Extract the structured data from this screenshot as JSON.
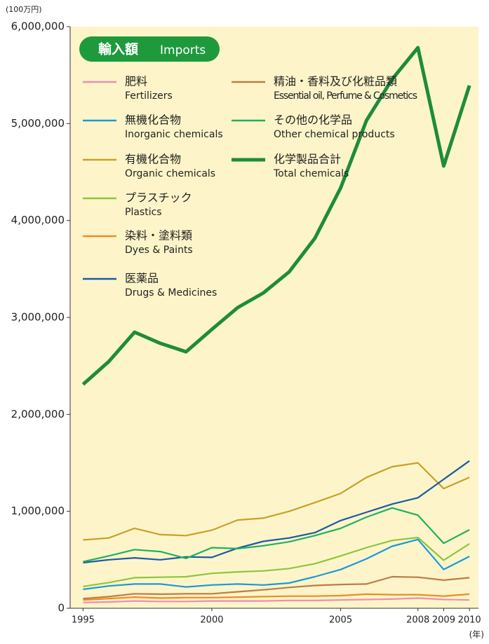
{
  "chart_data": {
    "type": "line",
    "unit_label": "(100万円)",
    "x_unit_label": "(年)",
    "legend_title": "輸入額",
    "legend_title_en": "Imports",
    "x": [
      1995,
      1996,
      1997,
      1998,
      1999,
      2000,
      2001,
      2002,
      2003,
      2004,
      2005,
      2006,
      2007,
      2008,
      2009,
      2010
    ],
    "xlim": [
      1994.5,
      2010.35
    ],
    "xticks": [
      1995,
      2000,
      2005,
      2008,
      2009,
      2010
    ],
    "ylim": [
      0,
      6000000
    ],
    "yticks": [
      0,
      {
        "value": 1000000,
        "label": "1,000,000"
      },
      {
        "value": 2000000,
        "label": "2,000,000"
      },
      {
        "value": 3000000,
        "label": "3,000,000"
      },
      {
        "value": 4000000,
        "label": "4,000,000"
      },
      {
        "value": 5000000,
        "label": "5,000,000"
      },
      {
        "value": 6000000,
        "label": "6,000,000"
      }
    ],
    "series": [
      {
        "name": "肥料",
        "name_en": "Fertilizers",
        "color": "#f08cb4",
        "values": [
          60000,
          65000,
          75000,
          70000,
          70000,
          75000,
          75000,
          75000,
          80000,
          80000,
          85000,
          90000,
          95000,
          105000,
          90000,
          85000
        ]
      },
      {
        "name": "無機化合物",
        "name_en": "Inorganic chemicals",
        "color": "#1a9ad6",
        "values": [
          195000,
          230000,
          250000,
          250000,
          220000,
          240000,
          250000,
          240000,
          260000,
          325000,
          400000,
          510000,
          640000,
          710000,
          400000,
          535000
        ]
      },
      {
        "name": "有機化合物",
        "name_en": "Organic chemicals",
        "color": "#c8a02a",
        "values": [
          705000,
          725000,
          825000,
          760000,
          750000,
          805000,
          910000,
          930000,
          1000000,
          1090000,
          1185000,
          1350000,
          1460000,
          1500000,
          1235000,
          1350000
        ]
      },
      {
        "name": "プラスチック",
        "name_en": "Plastics",
        "color": "#8cc63e",
        "values": [
          225000,
          265000,
          315000,
          320000,
          325000,
          360000,
          375000,
          385000,
          410000,
          460000,
          540000,
          625000,
          700000,
          730000,
          495000,
          665000
        ]
      },
      {
        "name": "染料・塗料類",
        "name_en": "Dyes & Paints",
        "color": "#f08a24",
        "values": [
          85000,
          100000,
          115000,
          105000,
          110000,
          110000,
          115000,
          120000,
          125000,
          125000,
          130000,
          145000,
          140000,
          140000,
          125000,
          145000
        ]
      },
      {
        "name": "医薬品",
        "name_en": "Drugs & Medicines",
        "color": "#1a5aa8",
        "values": [
          470000,
          500000,
          520000,
          500000,
          530000,
          525000,
          620000,
          690000,
          725000,
          780000,
          905000,
          990000,
          1075000,
          1140000,
          1330000,
          1520000
        ]
      },
      {
        "name": "精油・香料及び化粧品類",
        "name_en": "Essential oil, Perfume & Cosmetics",
        "color": "#c07a48",
        "values": [
          100000,
          120000,
          150000,
          145000,
          150000,
          150000,
          170000,
          190000,
          215000,
          235000,
          245000,
          250000,
          325000,
          320000,
          290000,
          315000
        ]
      },
      {
        "name": "その他の化学品",
        "name_en": "Other chemical products",
        "color": "#20b060",
        "values": [
          480000,
          540000,
          605000,
          585000,
          515000,
          625000,
          615000,
          645000,
          685000,
          750000,
          825000,
          940000,
          1035000,
          960000,
          670000,
          810000
        ]
      },
      {
        "name": "化学製品合計",
        "name_en": "Total chemicals",
        "color": "#1e8c3c",
        "values": [
          2310000,
          2545000,
          2848000,
          2733000,
          2646000,
          2877000,
          3101000,
          3253000,
          3470000,
          3817000,
          4337000,
          5031000,
          5458000,
          5783000,
          4562000,
          5393000
        ]
      }
    ]
  }
}
